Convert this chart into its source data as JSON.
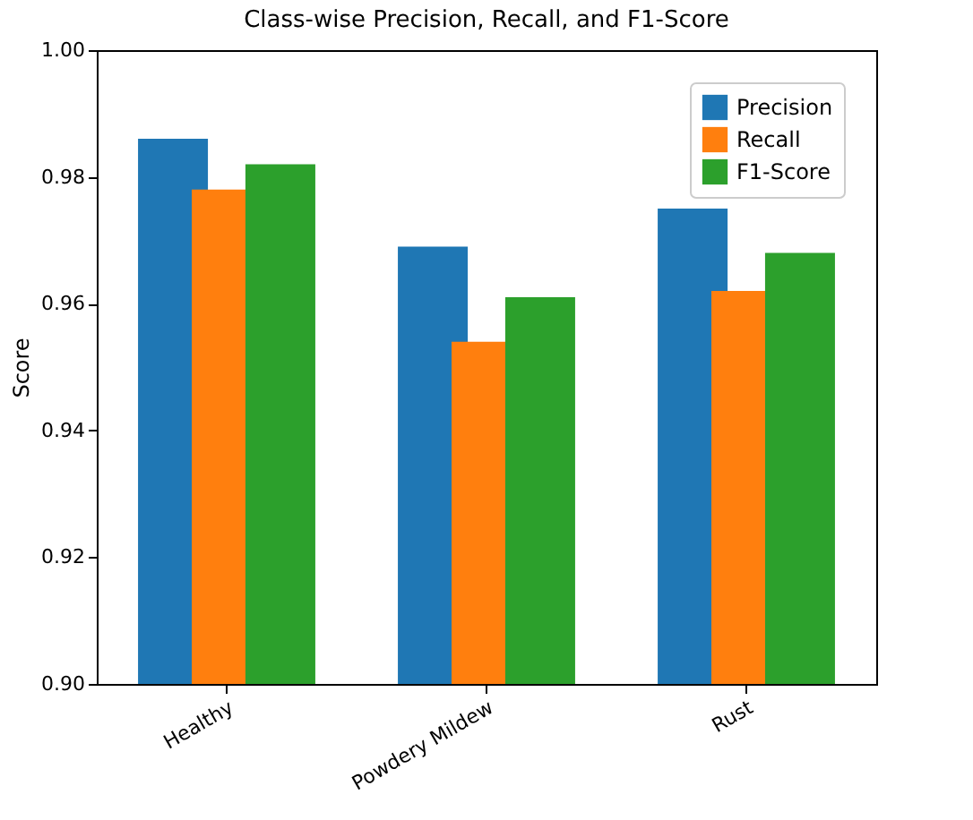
{
  "chart_data": {
    "type": "bar",
    "title": "Class-wise Precision, Recall, and F1-Score",
    "ylabel": "Score",
    "categories": [
      "Healthy",
      "Powdery Mildew",
      "Rust"
    ],
    "series": [
      {
        "name": "Precision",
        "color": "#1f77b4",
        "values": [
          0.986,
          0.969,
          0.975
        ]
      },
      {
        "name": "Recall",
        "color": "#ff7f0e",
        "values": [
          0.978,
          0.954,
          0.962
        ]
      },
      {
        "name": "F1-Score",
        "color": "#2ca02c",
        "values": [
          0.982,
          0.961,
          0.968
        ]
      }
    ],
    "ylim": [
      0.9,
      1.0
    ],
    "yticks": [
      {
        "value": 0.9,
        "label": "0.90"
      },
      {
        "value": 0.92,
        "label": "0.92"
      },
      {
        "value": 0.94,
        "label": "0.94"
      },
      {
        "value": 0.96,
        "label": "0.96"
      },
      {
        "value": 0.98,
        "label": "0.98"
      },
      {
        "value": 1.0,
        "label": "1.00"
      }
    ],
    "grid": false,
    "legend": "top right"
  }
}
